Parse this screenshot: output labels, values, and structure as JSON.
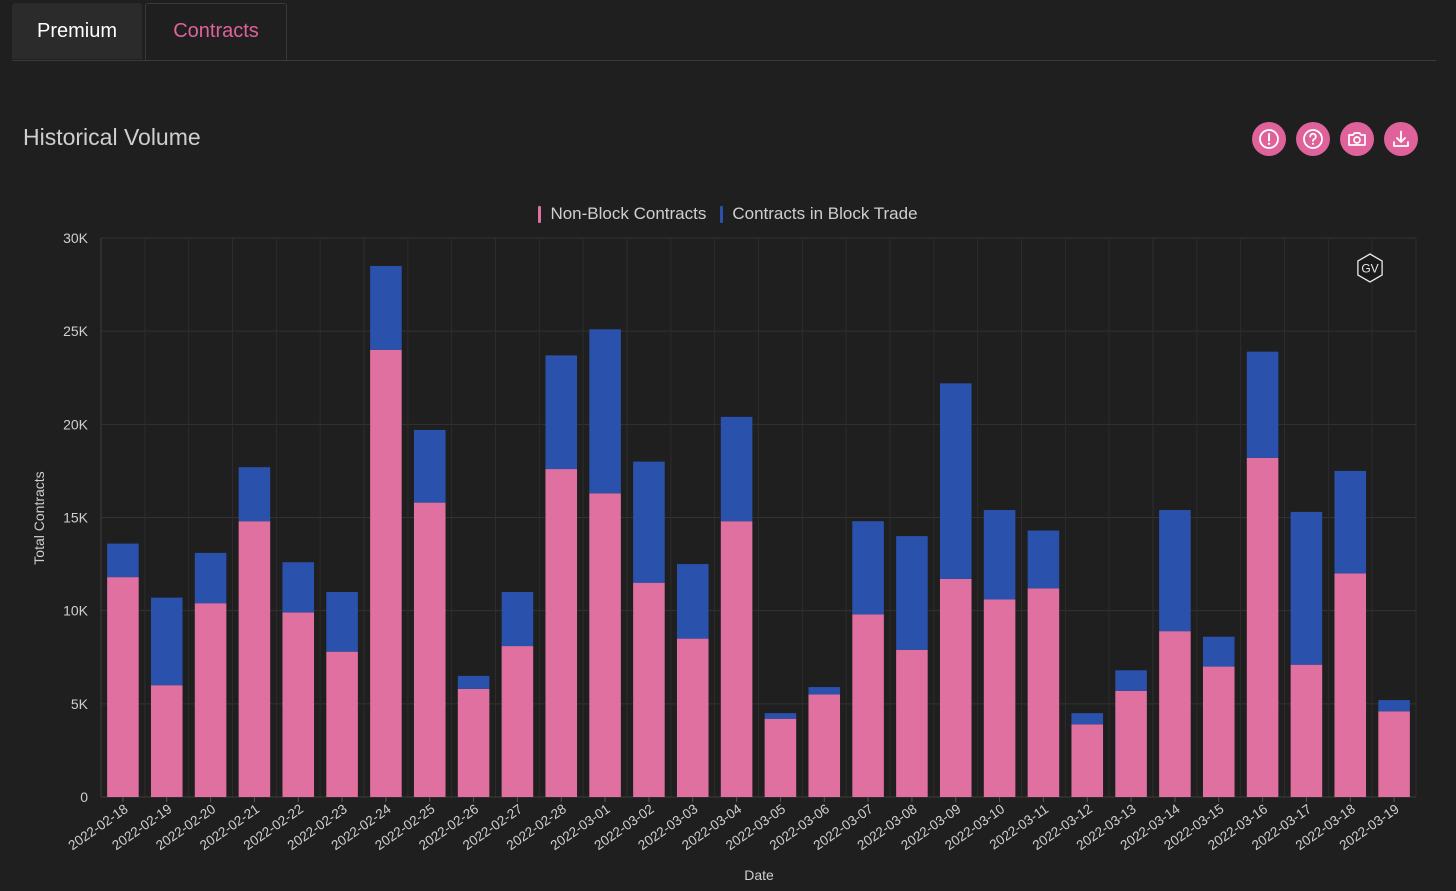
{
  "tabs": [
    {
      "label": "Premium"
    },
    {
      "label": "Contracts"
    }
  ],
  "panel": {
    "title": "Historical Volume"
  },
  "toolbar": [
    {
      "name": "info-icon"
    },
    {
      "name": "help-icon"
    },
    {
      "name": "camera-icon"
    },
    {
      "name": "download-icon"
    }
  ],
  "watermark": "GV",
  "colors": {
    "non_block": "#e0709f",
    "block": "#2a52ad",
    "accent": "#e0629a"
  },
  "chart_data": {
    "type": "bar",
    "stacked": true,
    "xlabel": "Date",
    "ylabel": "Total Contracts",
    "ylim": [
      0,
      30000
    ],
    "yticks": [
      0,
      5000,
      10000,
      15000,
      20000,
      25000,
      30000
    ],
    "ytick_labels": [
      "0",
      "5K",
      "10K",
      "15K",
      "20K",
      "25K",
      "30K"
    ],
    "grid": true,
    "legend_position": "top-center",
    "categories": [
      "2022-02-18",
      "2022-02-19",
      "2022-02-20",
      "2022-02-21",
      "2022-02-22",
      "2022-02-23",
      "2022-02-24",
      "2022-02-25",
      "2022-02-26",
      "2022-02-27",
      "2022-02-28",
      "2022-03-01",
      "2022-03-02",
      "2022-03-03",
      "2022-03-04",
      "2022-03-05",
      "2022-03-06",
      "2022-03-07",
      "2022-03-08",
      "2022-03-09",
      "2022-03-10",
      "2022-03-11",
      "2022-03-12",
      "2022-03-13",
      "2022-03-14",
      "2022-03-15",
      "2022-03-16",
      "2022-03-17",
      "2022-03-18",
      "2022-03-19"
    ],
    "series": [
      {
        "name": "Non-Block Contracts",
        "values": [
          11800,
          6000,
          10400,
          14800,
          9900,
          7800,
          24000,
          15800,
          5800,
          8100,
          17600,
          16300,
          11500,
          8500,
          14800,
          4200,
          5500,
          9800,
          7900,
          11700,
          10600,
          11200,
          3900,
          5700,
          8900,
          7000,
          18200,
          7100,
          12000,
          4600
        ]
      },
      {
        "name": "Contracts in Block Trade",
        "values": [
          1800,
          4700,
          2700,
          2900,
          2700,
          3200,
          4500,
          3900,
          700,
          2900,
          6100,
          8800,
          6500,
          4000,
          5600,
          300,
          400,
          5000,
          6100,
          10500,
          4800,
          3100,
          600,
          1100,
          6500,
          1600,
          5700,
          8200,
          5500,
          600
        ]
      }
    ]
  }
}
